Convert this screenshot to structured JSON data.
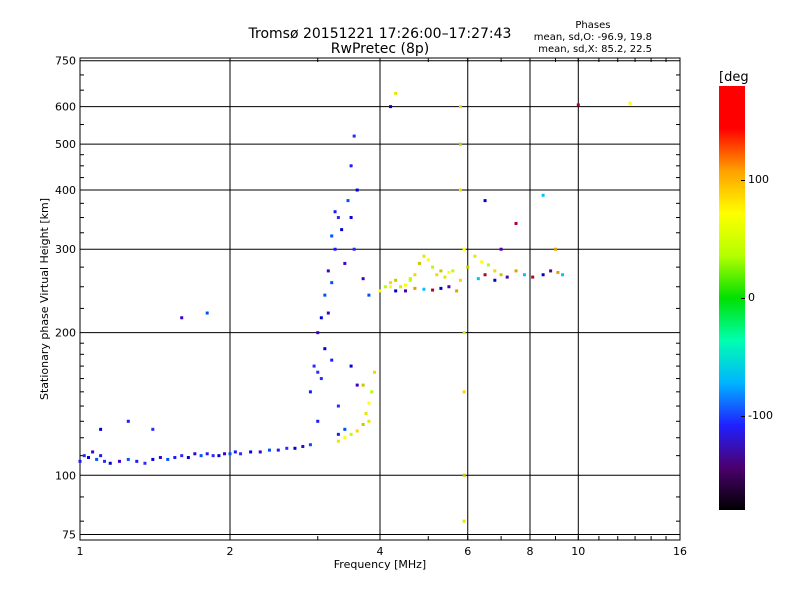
{
  "chart_data": {
    "type": "scatter",
    "title": "Tromsø 20151221 17:26:00–17:27:43",
    "subtitle": "RwPretec (8p)",
    "xlabel": "Frequency [MHz]",
    "ylabel": "Stationary phase Virtual Height [km]",
    "xscale": "log",
    "yscale": "log",
    "xlim": [
      1,
      16
    ],
    "ylim": [
      73,
      760
    ],
    "x_ticks": [
      1,
      2,
      4,
      6,
      8,
      10,
      16
    ],
    "y_ticks": [
      75,
      100,
      200,
      300,
      400,
      500,
      600,
      750
    ],
    "grid": true,
    "stats": {
      "header": "Phases",
      "line_o": "mean, sd,O: -96.9, 19.8",
      "line_x": "mean, sd,X: 85.2, 22.5"
    },
    "colorbar": {
      "label": "[deg",
      "ticks": [
        100,
        0,
        -100
      ],
      "range": [
        -180,
        180
      ],
      "colors": [
        "#000000",
        "#4b006e",
        "#2020ff",
        "#00b4ff",
        "#00ffb0",
        "#00e000",
        "#b4ff00",
        "#ffff00",
        "#ffa000",
        "#ff0000",
        "#ff0000"
      ]
    },
    "series": [
      {
        "color_group": "o_mode",
        "points": [
          [
            1.0,
            107
          ],
          [
            1.02,
            110
          ],
          [
            1.04,
            109
          ],
          [
            1.06,
            112
          ],
          [
            1.08,
            108
          ],
          [
            1.1,
            110
          ],
          [
            1.12,
            107
          ],
          [
            1.15,
            106
          ],
          [
            1.2,
            107
          ],
          [
            1.25,
            108
          ],
          [
            1.3,
            107
          ],
          [
            1.35,
            106
          ],
          [
            1.4,
            108
          ],
          [
            1.45,
            109
          ],
          [
            1.5,
            108
          ],
          [
            1.55,
            109
          ],
          [
            1.6,
            110
          ],
          [
            1.65,
            109
          ],
          [
            1.7,
            111
          ],
          [
            1.75,
            110
          ],
          [
            1.8,
            111
          ],
          [
            1.85,
            110
          ],
          [
            1.9,
            110
          ],
          [
            1.95,
            111
          ],
          [
            2.0,
            111
          ],
          [
            2.05,
            112
          ],
          [
            2.1,
            111
          ],
          [
            2.2,
            112
          ],
          [
            2.3,
            112
          ],
          [
            2.4,
            113
          ],
          [
            2.5,
            113
          ],
          [
            2.6,
            114
          ],
          [
            2.7,
            114
          ],
          [
            2.8,
            115
          ],
          [
            2.9,
            116
          ],
          [
            3.0,
            130
          ],
          [
            3.05,
            160
          ],
          [
            3.1,
            185
          ],
          [
            3.15,
            220
          ],
          [
            3.2,
            255
          ],
          [
            3.25,
            300
          ],
          [
            3.3,
            350
          ],
          [
            3.35,
            330
          ],
          [
            3.4,
            280
          ],
          [
            3.45,
            380
          ],
          [
            3.5,
            450
          ],
          [
            3.55,
            520
          ],
          [
            3.6,
            400
          ],
          [
            3.0,
            200
          ],
          [
            3.1,
            240
          ],
          [
            3.2,
            175
          ],
          [
            3.3,
            140
          ],
          [
            3.5,
            170
          ],
          [
            3.6,
            155
          ],
          [
            3.4,
            125
          ],
          [
            3.3,
            122
          ],
          [
            2.95,
            170
          ],
          [
            3.05,
            215
          ],
          [
            3.15,
            270
          ],
          [
            3.2,
            320
          ],
          [
            3.25,
            360
          ],
          [
            3.55,
            300
          ],
          [
            3.5,
            350
          ],
          [
            1.6,
            215
          ],
          [
            1.8,
            220
          ],
          [
            1.25,
            130
          ],
          [
            1.4,
            125
          ],
          [
            1.1,
            125
          ],
          [
            3.7,
            260
          ],
          [
            3.8,
            240
          ],
          [
            2.9,
            150
          ],
          [
            3.0,
            165
          ]
        ]
      },
      {
        "color_group": "x_mode",
        "points": [
          [
            3.3,
            118
          ],
          [
            3.4,
            120
          ],
          [
            3.5,
            122
          ],
          [
            3.6,
            124
          ],
          [
            3.7,
            128
          ],
          [
            3.75,
            135
          ],
          [
            3.8,
            142
          ],
          [
            3.85,
            150
          ],
          [
            3.9,
            165
          ],
          [
            3.7,
            155
          ],
          [
            3.8,
            130
          ],
          [
            4.0,
            245
          ],
          [
            4.1,
            250
          ],
          [
            4.2,
            255
          ],
          [
            4.3,
            258
          ],
          [
            4.4,
            250
          ],
          [
            4.5,
            252
          ],
          [
            4.6,
            260
          ],
          [
            4.7,
            265
          ],
          [
            4.8,
            280
          ],
          [
            4.9,
            290
          ],
          [
            5.0,
            285
          ],
          [
            5.1,
            275
          ],
          [
            5.2,
            265
          ],
          [
            5.3,
            270
          ],
          [
            5.4,
            262
          ],
          [
            5.5,
            268
          ],
          [
            5.6,
            270
          ],
          [
            5.8,
            258
          ],
          [
            6.0,
            275
          ],
          [
            6.2,
            290
          ],
          [
            6.4,
            282
          ],
          [
            6.6,
            278
          ],
          [
            6.8,
            270
          ],
          [
            7.0,
            265
          ],
          [
            4.3,
            640
          ],
          [
            4.2,
            250
          ],
          [
            4.6,
            258
          ],
          [
            5.8,
            600
          ],
          [
            5.8,
            500
          ],
          [
            5.8,
            400
          ],
          [
            5.9,
            300
          ],
          [
            5.9,
            200
          ],
          [
            5.9,
            150
          ],
          [
            5.9,
            100
          ],
          [
            5.9,
            80
          ],
          [
            12.7,
            610
          ]
        ]
      },
      {
        "color_group": "upper_f2",
        "points": [
          [
            4.3,
            245
          ],
          [
            4.5,
            245
          ],
          [
            4.7,
            248
          ],
          [
            4.9,
            247
          ],
          [
            5.1,
            246
          ],
          [
            5.3,
            248
          ],
          [
            5.5,
            250
          ],
          [
            5.7,
            245
          ],
          [
            6.3,
            260
          ],
          [
            6.5,
            265
          ],
          [
            6.8,
            258
          ],
          [
            7.2,
            262
          ],
          [
            7.5,
            270
          ],
          [
            7.8,
            265
          ],
          [
            8.1,
            262
          ],
          [
            8.5,
            265
          ],
          [
            8.8,
            270
          ],
          [
            9.0,
            300
          ],
          [
            8.5,
            390
          ],
          [
            7.5,
            340
          ],
          [
            6.5,
            380
          ],
          [
            7.0,
            300
          ],
          [
            9.1,
            268
          ],
          [
            9.3,
            265
          ],
          [
            10.0,
            605
          ],
          [
            4.2,
            600
          ]
        ]
      }
    ]
  }
}
